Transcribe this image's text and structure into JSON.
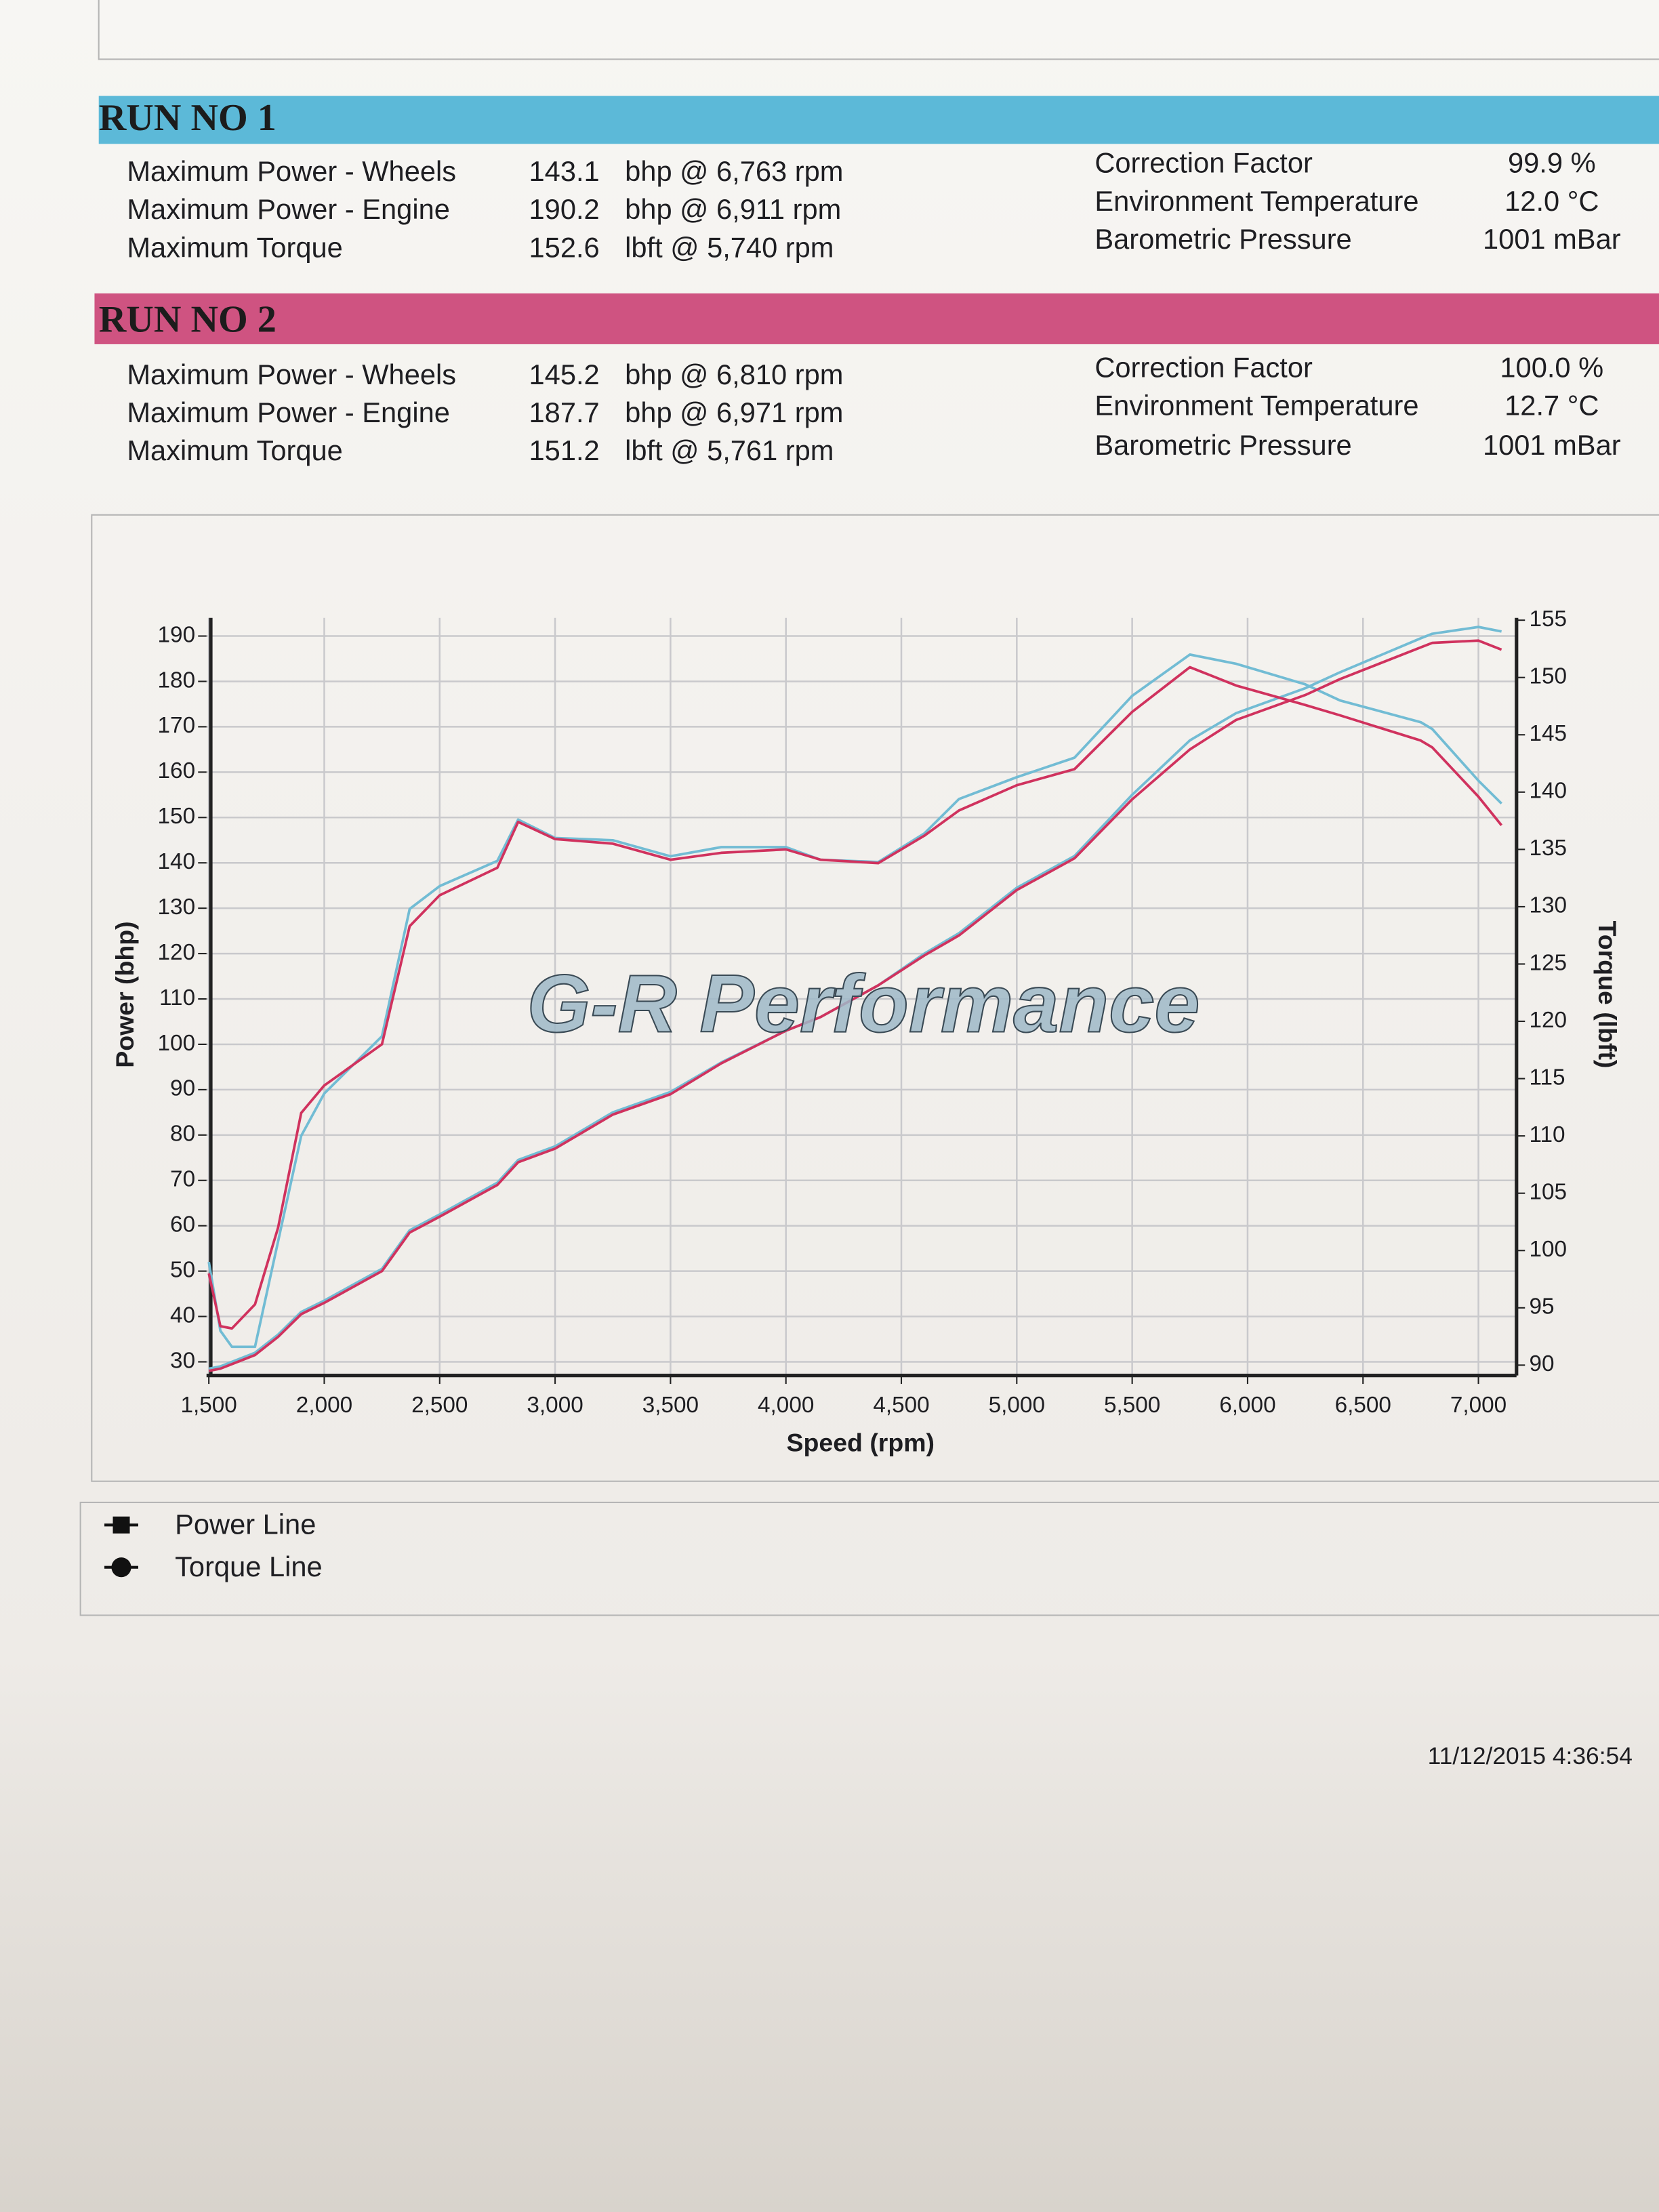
{
  "runs": [
    {
      "title": "RUN NO 1",
      "rows": [
        {
          "label": "Maximum Power - Wheels",
          "value": "143.1",
          "unit": "bhp @ 6,763 rpm"
        },
        {
          "label": "Maximum Power - Engine",
          "value": "190.2",
          "unit": "bhp @ 6,911 rpm"
        },
        {
          "label": "Maximum Torque",
          "value": "152.6",
          "unit": "lbft @ 5,740 rpm"
        }
      ],
      "conditions": [
        {
          "label": "Correction Factor",
          "value": "99.9 %"
        },
        {
          "label": "Environment Temperature",
          "value": "12.0 °C"
        },
        {
          "label": "Barometric Pressure",
          "value": "1001 mBar"
        }
      ]
    },
    {
      "title": "RUN NO 2",
      "rows": [
        {
          "label": "Maximum Power - Wheels",
          "value": "145.2",
          "unit": "bhp @ 6,810 rpm"
        },
        {
          "label": "Maximum Power - Engine",
          "value": "187.7",
          "unit": "bhp @ 6,971 rpm"
        },
        {
          "label": "Maximum Torque",
          "value": "151.2",
          "unit": "lbft @ 5,761 rpm"
        }
      ],
      "conditions": [
        {
          "label": "Correction Factor",
          "value": "100.0 %"
        },
        {
          "label": "Environment Temperature",
          "value": "12.7 °C"
        },
        {
          "label": "Barometric Pressure",
          "value": "1001 mBar"
        }
      ]
    }
  ],
  "chart_data": {
    "type": "line",
    "watermark": "G-R Performance",
    "xlabel": "Speed (rpm)",
    "ylabel": "Power (bhp)",
    "y2label": "Torque (lbft)",
    "x": [
      1500,
      1550,
      1600,
      1700,
      1800,
      1900,
      2000,
      2250,
      2370,
      2500,
      2750,
      2840,
      3000,
      3250,
      3500,
      3720,
      4000,
      4150,
      4400,
      4600,
      4750,
      5000,
      5250,
      5500,
      5750,
      5950,
      6250,
      6400,
      6750,
      6800,
      7000,
      7100
    ],
    "series": [
      {
        "color": "#72bcd4",
        "values": [
          28.5,
          29,
          30,
          32,
          36,
          41,
          43.5,
          50.5,
          59,
          62.5,
          69.5,
          74.5,
          77.5,
          85,
          89.5,
          96,
          103,
          106,
          113,
          120,
          124.5,
          134.5,
          141.5,
          155,
          167,
          173,
          178.5,
          182,
          189.5,
          190.5,
          192,
          191
        ]
      },
      {
        "color": "#72bcd4",
        "axis": "y2",
        "values": [
          99,
          93,
          91.6,
          91.6,
          100.8,
          110,
          113.7,
          118.7,
          129.8,
          131.8,
          134,
          137.6,
          136,
          135.8,
          134.4,
          135.2,
          135.2,
          134.1,
          133.9,
          136.4,
          139.4,
          141.3,
          143,
          148.4,
          152,
          151.2,
          149.4,
          148,
          146.1,
          145.5,
          141,
          139
        ]
      },
      {
        "color": "#d0325e",
        "values": [
          28,
          28.5,
          29.5,
          31.5,
          35.5,
          40.5,
          43,
          50,
          58.5,
          62,
          69,
          74,
          77,
          84.5,
          89,
          95.8,
          103,
          106,
          113,
          119.6,
          124,
          134,
          141,
          154,
          165,
          171.5,
          177,
          180.5,
          187.5,
          188.5,
          189,
          187
        ]
      },
      {
        "color": "#d0325e",
        "axis": "y2",
        "values": [
          98,
          93.4,
          93.2,
          95.3,
          102,
          112,
          114.4,
          118,
          128.3,
          131,
          133.4,
          137.4,
          135.9,
          135.5,
          134.1,
          134.7,
          135,
          134.1,
          133.8,
          136.2,
          138.4,
          140.6,
          142,
          147,
          150.9,
          149.3,
          147.6,
          146.7,
          144.5,
          143.9,
          139.6,
          137.1
        ]
      }
    ],
    "xlim": [
      1490,
      7165
    ],
    "xticks": [
      {
        "value": 1500,
        "label": "1,500"
      },
      {
        "value": 2000,
        "label": "2,000"
      },
      {
        "value": 2500,
        "label": "2,500"
      },
      {
        "value": 3000,
        "label": "3,000"
      },
      {
        "value": 3500,
        "label": "3,500"
      },
      {
        "value": 4000,
        "label": "4,000"
      },
      {
        "value": 4500,
        "label": "4,500"
      },
      {
        "value": 5000,
        "label": "5,000"
      },
      {
        "value": 5500,
        "label": "5,500"
      },
      {
        "value": 6000,
        "label": "6,000"
      },
      {
        "value": 6500,
        "label": "6,500"
      },
      {
        "value": 7000,
        "label": "7,000"
      }
    ],
    "ylim": [
      27,
      194
    ],
    "yticks": [
      30,
      40,
      50,
      60,
      70,
      80,
      90,
      100,
      110,
      120,
      130,
      140,
      150,
      160,
      170,
      180,
      190
    ],
    "y2lim": [
      89.1,
      155.2
    ],
    "y2ticks": [
      90,
      95,
      100,
      105,
      110,
      115,
      120,
      125,
      130,
      135,
      140,
      145,
      150,
      155
    ],
    "grid": true,
    "legend_entries": [
      "Power Line",
      "Torque Line"
    ]
  },
  "timestamp": "11/12/2015 4:36:54"
}
